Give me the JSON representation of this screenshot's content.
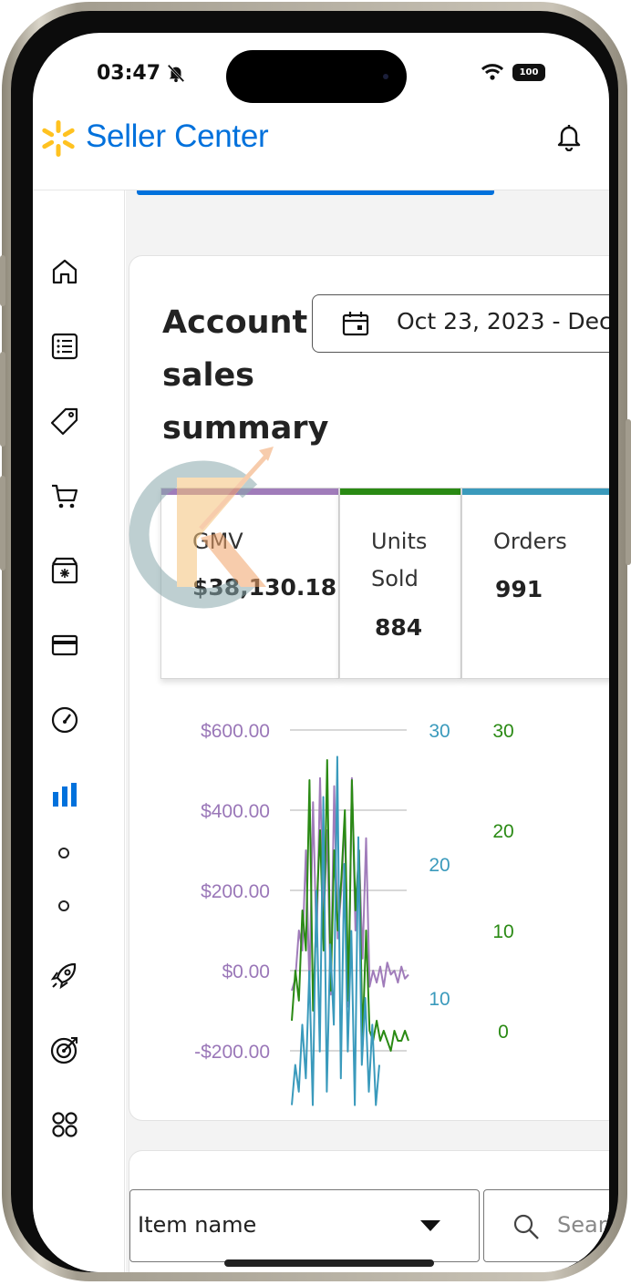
{
  "status_bar": {
    "time": "03:47",
    "battery": "100"
  },
  "header": {
    "brand": "Seller Center"
  },
  "sidebar": {
    "items": [
      "home-icon",
      "list-icon",
      "tag-icon",
      "cart-icon",
      "box-icon",
      "card-icon",
      "gauge-icon",
      "analytics-icon",
      "sub-item-dot",
      "sub-item-dot",
      "rocket-icon",
      "target-icon",
      "apps-icon"
    ],
    "active": "analytics-icon"
  },
  "summary": {
    "title": "Account sales summary",
    "date_range": "Oct 23, 2023 - Dec",
    "metrics": [
      {
        "label": "GMV",
        "value": "$38,130.18",
        "color": "#a07cba"
      },
      {
        "label": "Units Sold",
        "value": "884",
        "color": "#2a8a14"
      },
      {
        "label": "Orders",
        "value": "991",
        "color": "#3a9abc"
      }
    ]
  },
  "chart_data": {
    "type": "line",
    "y_axes": [
      {
        "name": "GMV",
        "color": "#9a77b8",
        "ticks": [
          "$600.00",
          "$400.00",
          "$200.00",
          "$0.00",
          "-$200.00"
        ],
        "range": [
          -350,
          600
        ]
      },
      {
        "name": "Orders",
        "color": "#3a9abc",
        "ticks": [
          "30",
          "20",
          "10"
        ],
        "range": [
          0,
          30
        ]
      },
      {
        "name": "Units Sold",
        "color": "#2a8a14",
        "ticks": [
          "30",
          "20",
          "10",
          "0"
        ],
        "range": [
          -13,
          30
        ]
      }
    ],
    "series": [
      {
        "axis": 0,
        "color": "#a07cba",
        "values": [
          -50,
          -20,
          100,
          50,
          300,
          -40,
          420,
          60,
          480,
          120,
          350,
          -60,
          460,
          80,
          200,
          380,
          -90,
          480,
          100,
          300,
          30,
          330,
          -40,
          0,
          -30,
          10,
          -40,
          20,
          -10,
          0,
          -30,
          10,
          -20,
          -10
        ]
      },
      {
        "axis": 2,
        "color": "#2a8a14",
        "values": [
          1,
          6,
          3,
          12,
          8,
          25,
          2,
          12,
          20,
          8,
          27,
          4,
          18,
          10,
          15,
          22,
          3,
          25,
          12,
          18,
          -1,
          10,
          0,
          -1,
          1,
          -1,
          0,
          -1,
          -2,
          0,
          -1,
          -1,
          0,
          -1
        ]
      },
      {
        "axis": 1,
        "color": "#3a9abc",
        "values": [
          2,
          5,
          3,
          8,
          4,
          12,
          2,
          18,
          6,
          25,
          3,
          14,
          8,
          28,
          4,
          20,
          6,
          15,
          2,
          22,
          5,
          10,
          3,
          8,
          2,
          5
        ]
      }
    ]
  },
  "filters": {
    "select_value": "Item name",
    "search_placeholder": "Sear"
  }
}
